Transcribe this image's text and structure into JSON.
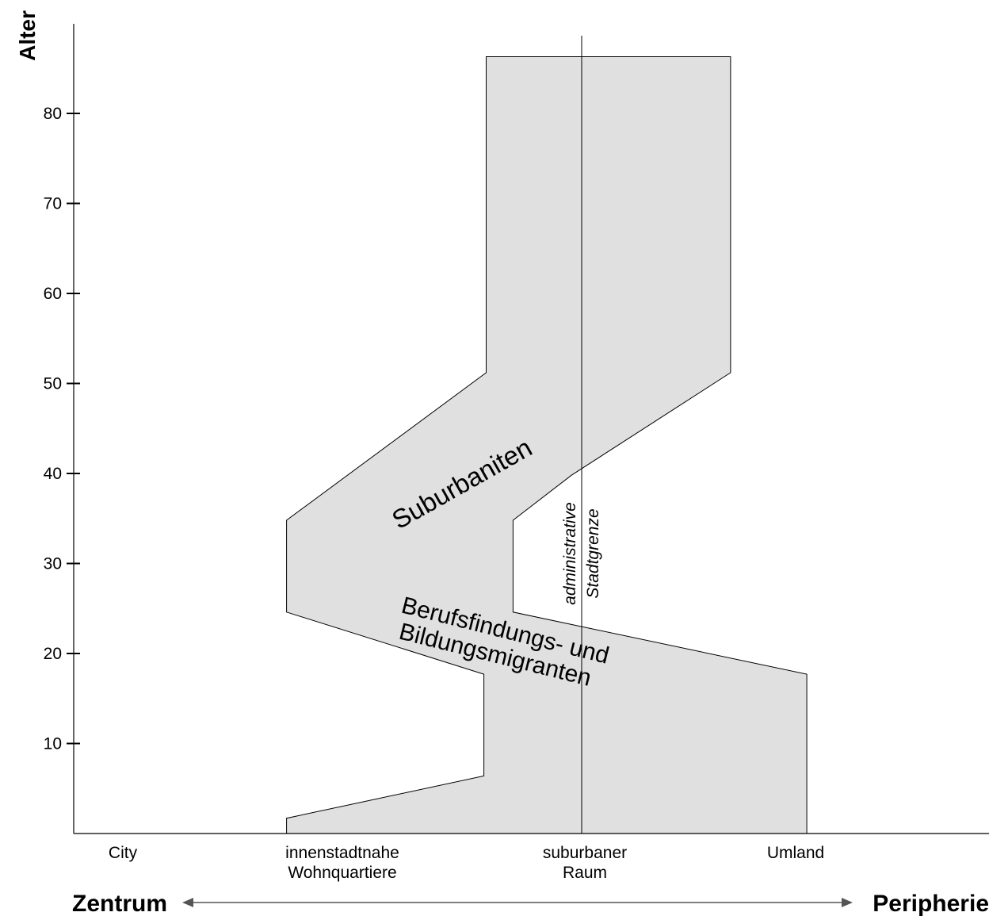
{
  "chart_data": {
    "type": "area",
    "axis": {
      "y_label": "Alter",
      "y_ticks": [
        "10",
        "20",
        "30",
        "40",
        "50",
        "60",
        "70",
        "80"
      ],
      "ylim": [
        0,
        90
      ]
    },
    "zones": [
      {
        "lines": [
          "City"
        ]
      },
      {
        "lines": [
          "innenstadtnahe",
          "Wohnquartiere"
        ]
      },
      {
        "lines": [
          "suburbaner",
          "Raum"
        ]
      },
      {
        "lines": [
          "Umland"
        ]
      }
    ],
    "direction": {
      "left": "Zentrum",
      "right": "Peripherie"
    },
    "boundary": {
      "lines": [
        "administrative",
        "Stadtgrenze"
      ]
    },
    "labels": {
      "suburbaniten": "Suburbaniten",
      "berufsfindung": [
        "Berufsfindungs- und",
        "Bildungsmigranten"
      ]
    },
    "band_outline": {
      "x_scale": "0 = City, 1 = innenstadtnahe Wohnquartiere, 2 = suburbaner Raum, 3 = Umland",
      "left_edge": [
        {
          "age": 86.3,
          "x": 1.62
        },
        {
          "age": 51.2,
          "x": 1.62
        },
        {
          "age": 34.8,
          "x": 0.73
        },
        {
          "age": 24.6,
          "x": 0.73
        },
        {
          "age": 17.7,
          "x": 1.61
        },
        {
          "age": 6.4,
          "x": 1.61
        },
        {
          "age": 1.7,
          "x": 0.73
        },
        {
          "age": 0,
          "x": 0.73
        }
      ],
      "right_edge": [
        {
          "age": 86.3,
          "x": 2.71
        },
        {
          "age": 51.2,
          "x": 2.71
        },
        {
          "age": 39.8,
          "x": 2.0
        },
        {
          "age": 34.8,
          "x": 1.74
        },
        {
          "age": 24.6,
          "x": 1.74
        },
        {
          "age": 17.7,
          "x": 3.05
        },
        {
          "age": 0,
          "x": 3.05
        }
      ]
    },
    "colors": {
      "fill": "#e0e0e0",
      "stroke": "#000000",
      "arrow": "#555555"
    }
  }
}
